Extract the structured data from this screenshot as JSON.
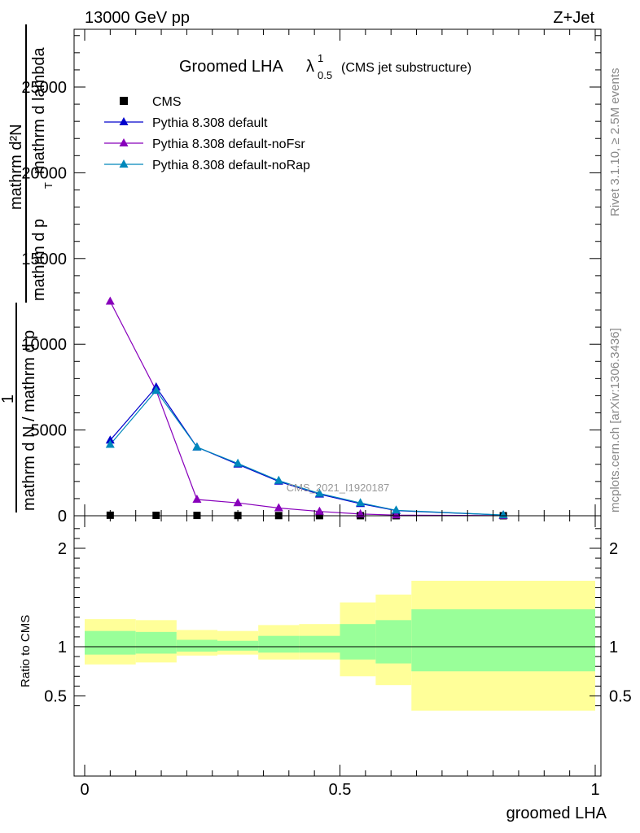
{
  "header": {
    "left": "13000 GeV pp",
    "right": "Z+Jet"
  },
  "side_labels": {
    "rivet": "Rivet 3.1.10, ≥ 2.5M events",
    "mcplots": "mcplots.cern.ch [arXiv:1306.3436]"
  },
  "watermark": "CMS_2021_I1920187",
  "colors": {
    "cms": "#000000",
    "default": "#0000cc",
    "noFsr": "#8800bb",
    "noRap": "#0088bb",
    "band_outer": "#ffff99",
    "band_inner": "#99ff99"
  },
  "chart_data": [
    {
      "type": "line",
      "title_main": "Groomed LHA",
      "title_lambda": "λ",
      "title_sup": "1",
      "title_sub": "0.5",
      "title_paren": "(CMS jet substructure)",
      "ylabel_top": "mathrm d²N",
      "ylabel_top_bottom": "mathrm d p",
      "ylabel_top_tail": "mathrm d lambda",
      "ylabel_T": "T",
      "ylabel_one": "1",
      "ylabel_bottom": "mathrm d N / mathrm d p",
      "ylabel_T2": "T",
      "xlim": [
        0,
        1
      ],
      "ylim": [
        0,
        28000
      ],
      "y_ticks": [
        0,
        5000,
        10000,
        15000,
        20000,
        25000
      ],
      "y_tick_labels": [
        "0",
        "5000",
        "10000",
        "15000",
        "20000",
        "25000"
      ],
      "legend_position": "top-left",
      "series": [
        {
          "name": "CMS",
          "key": "cms",
          "marker": "square",
          "x": [
            0.05,
            0.14,
            0.22,
            0.3,
            0.38,
            0.46,
            0.54,
            0.61,
            0.82
          ],
          "y": [
            30,
            25,
            20,
            15,
            10,
            6,
            4,
            2,
            1
          ]
        },
        {
          "name": "Pythia 8.308 default",
          "key": "default",
          "marker": "triangle",
          "x": [
            0.05,
            0.14,
            0.22,
            0.3,
            0.38,
            0.46,
            0.54,
            0.61,
            0.82
          ],
          "y": [
            4400,
            7500,
            4000,
            3000,
            2000,
            1250,
            700,
            300,
            40
          ]
        },
        {
          "name": "Pythia 8.308 default-noFsr",
          "key": "noFsr",
          "marker": "triangle",
          "x": [
            0.05,
            0.14,
            0.22,
            0.3,
            0.38,
            0.46,
            0.54,
            0.61,
            0.82
          ],
          "y": [
            12500,
            7300,
            950,
            750,
            450,
            250,
            100,
            40,
            5
          ]
        },
        {
          "name": "Pythia 8.308 default-noRap",
          "key": "noRap",
          "marker": "triangle",
          "x": [
            0.05,
            0.14,
            0.22,
            0.3,
            0.38,
            0.46,
            0.54,
            0.61,
            0.82
          ],
          "y": [
            4150,
            7300,
            4000,
            3050,
            2050,
            1300,
            750,
            320,
            45
          ]
        }
      ]
    },
    {
      "type": "area",
      "ylabel": "Ratio to CMS",
      "xlabel": "groomed LHA",
      "xlim": [
        0,
        1
      ],
      "ylim": [
        0.35,
        2.25
      ],
      "x_ticks": [
        0,
        0.5,
        1
      ],
      "x_tick_labels": [
        "0",
        "0.5",
        "1"
      ],
      "y_ticks": [
        0.5,
        1,
        2
      ],
      "y_tick_labels": [
        "0.5",
        "1",
        "2"
      ],
      "reference_line": 1,
      "bands": [
        {
          "x0": 0.0,
          "x1": 0.1,
          "outer_lo": 0.82,
          "outer_hi": 1.28,
          "inner_lo": 0.92,
          "inner_hi": 1.16
        },
        {
          "x0": 0.1,
          "x1": 0.18,
          "outer_lo": 0.84,
          "outer_hi": 1.27,
          "inner_lo": 0.93,
          "inner_hi": 1.15
        },
        {
          "x0": 0.18,
          "x1": 0.26,
          "outer_lo": 0.91,
          "outer_hi": 1.17,
          "inner_lo": 0.95,
          "inner_hi": 1.07
        },
        {
          "x0": 0.26,
          "x1": 0.34,
          "outer_lo": 0.92,
          "outer_hi": 1.16,
          "inner_lo": 0.96,
          "inner_hi": 1.06
        },
        {
          "x0": 0.34,
          "x1": 0.42,
          "outer_lo": 0.87,
          "outer_hi": 1.22,
          "inner_lo": 0.94,
          "inner_hi": 1.11
        },
        {
          "x0": 0.42,
          "x1": 0.5,
          "outer_lo": 0.87,
          "outer_hi": 1.23,
          "inner_lo": 0.94,
          "inner_hi": 1.11
        },
        {
          "x0": 0.5,
          "x1": 0.57,
          "outer_lo": 0.7,
          "outer_hi": 1.45,
          "inner_lo": 0.87,
          "inner_hi": 1.23
        },
        {
          "x0": 0.57,
          "x1": 0.64,
          "outer_lo": 0.61,
          "outer_hi": 1.53,
          "inner_lo": 0.83,
          "inner_hi": 1.27
        },
        {
          "x0": 0.64,
          "x1": 1.0,
          "outer_lo": 0.35,
          "outer_hi": 1.67,
          "inner_lo": 0.75,
          "inner_hi": 1.38
        }
      ]
    }
  ]
}
